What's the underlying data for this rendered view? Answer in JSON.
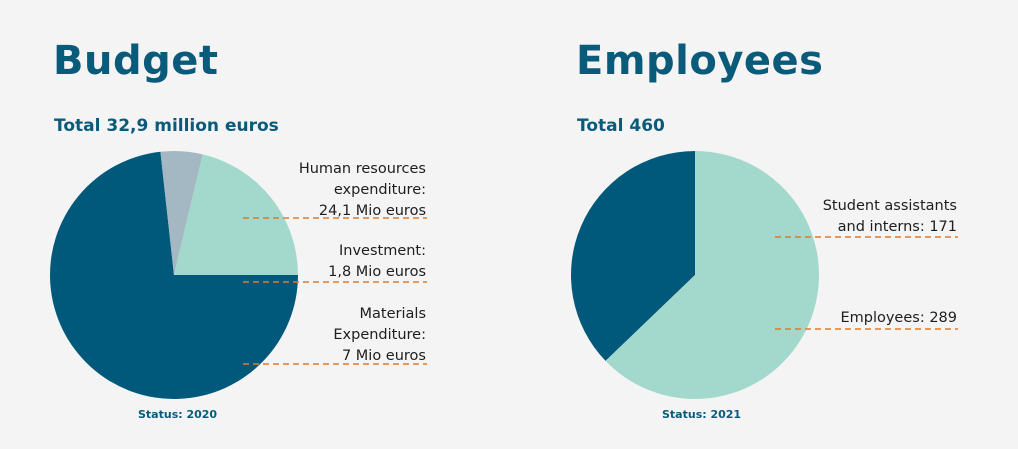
{
  "chart_data": [
    {
      "type": "pie",
      "title": "Budget",
      "subtitle": "Total 32,9 million euros",
      "footnote": "Status: 2020",
      "unit": "Mio euros",
      "slices": [
        {
          "label_lines": [
            "Human resources",
            "expenditure:",
            "24,1 Mio euros"
          ],
          "value": 24.1,
          "color": "#00587a"
        },
        {
          "label_lines": [
            "Investment:",
            "1,8 Mio euros"
          ],
          "value": 1.8,
          "color": "#a3b8c2"
        },
        {
          "label_lines": [
            "Materials",
            "Expenditure:",
            "7 Mio euros"
          ],
          "value": 7,
          "color": "#a3d9cc"
        }
      ]
    },
    {
      "type": "pie",
      "title": "Employees",
      "subtitle": "Total 460",
      "footnote": "Status: 2021",
      "slices": [
        {
          "label_lines": [
            "Student assistants",
            "and interns: 171"
          ],
          "value": 171,
          "color": "#00587a"
        },
        {
          "label_lines": [
            "Employees: 289"
          ],
          "value": 289,
          "color": "#a3d9cc"
        }
      ]
    }
  ],
  "colors": {
    "title": "#0a5a7a",
    "leader_line": "#e07b2a",
    "background": "#f4f4f4"
  }
}
